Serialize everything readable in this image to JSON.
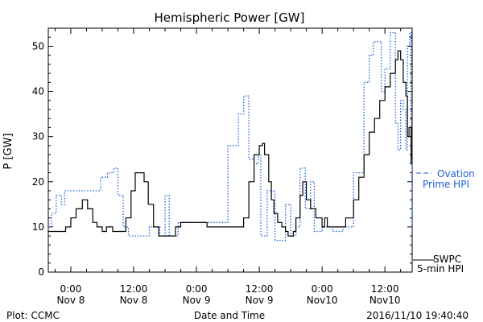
{
  "chart_data": {
    "type": "line",
    "title": "Hemispheric Power [GW]",
    "xlabel": "Date and Time",
    "ylabel": "P [GW]",
    "footer_left": "Plot: CCMC",
    "footer_right": "2016/11/10 19:40:40",
    "x_unit": "hours since 2016-11-08 00:00 UT",
    "xlim": [
      -4.3,
      65.2
    ],
    "ylim": [
      0,
      54
    ],
    "y_ticks": [
      0,
      10,
      20,
      30,
      40,
      50
    ],
    "x_ticks": [
      {
        "x": 0,
        "line1": "0:00",
        "line2": "Nov 8"
      },
      {
        "x": 12,
        "line1": "12:00",
        "line2": "Nov 8"
      },
      {
        "x": 24,
        "line1": "0:00",
        "line2": "Nov 9"
      },
      {
        "x": 36,
        "line1": "12:00",
        "line2": "Nov 9"
      },
      {
        "x": 48,
        "line1": "0:00",
        "line2": "Nov10"
      },
      {
        "x": 60,
        "line1": "12:00",
        "line2": "Nov10"
      }
    ],
    "series": [
      {
        "name": "Ovation Prime HPI",
        "legend_line1": "Ovation",
        "legend_line2": "Prime HPI",
        "color": "#1f5fd6",
        "style": "dotted",
        "points": [
          [
            -4.3,
            10
          ],
          [
            -3.7,
            13
          ],
          [
            -2.8,
            17
          ],
          [
            -1.8,
            15
          ],
          [
            -1.2,
            18
          ],
          [
            4.8,
            18
          ],
          [
            5.7,
            21
          ],
          [
            7.0,
            22
          ],
          [
            8.2,
            23
          ],
          [
            9.0,
            17
          ],
          [
            10.0,
            10
          ],
          [
            11.0,
            8
          ],
          [
            14.0,
            8
          ],
          [
            15.0,
            10
          ],
          [
            17.0,
            8
          ],
          [
            18.0,
            17
          ],
          [
            18.8,
            8
          ],
          [
            19.8,
            8
          ],
          [
            20.5,
            11
          ],
          [
            25.0,
            11
          ],
          [
            30.0,
            28
          ],
          [
            32.0,
            35
          ],
          [
            33.0,
            39
          ],
          [
            34.0,
            25
          ],
          [
            35.0,
            24
          ],
          [
            35.8,
            26
          ],
          [
            36.3,
            8
          ],
          [
            37.0,
            8
          ],
          [
            37.5,
            18
          ],
          [
            38.5,
            18
          ],
          [
            39.0,
            7
          ],
          [
            40.0,
            7
          ],
          [
            41.0,
            15
          ],
          [
            42.0,
            8
          ],
          [
            43.0,
            10
          ],
          [
            43.8,
            23
          ],
          [
            44.8,
            14
          ],
          [
            45.8,
            20
          ],
          [
            46.5,
            9
          ],
          [
            47.5,
            9
          ],
          [
            48.0,
            10
          ],
          [
            50.0,
            9
          ],
          [
            52.0,
            10
          ],
          [
            54.0,
            22
          ],
          [
            56.0,
            42
          ],
          [
            57.0,
            48
          ],
          [
            57.8,
            51
          ],
          [
            58.8,
            51
          ],
          [
            59.3,
            40
          ],
          [
            60.0,
            45
          ],
          [
            61.0,
            53
          ],
          [
            62.0,
            33
          ],
          [
            62.5,
            27
          ],
          [
            63.0,
            38
          ],
          [
            63.5,
            36
          ],
          [
            64.0,
            27
          ],
          [
            64.3,
            50
          ],
          [
            64.7,
            53
          ],
          [
            65.0,
            25
          ],
          [
            65.2,
            9
          ]
        ]
      },
      {
        "name": "SWPC 5-min HPI",
        "legend_line1": "SWPC",
        "legend_line2": "5-min HPI",
        "color": "#000000",
        "style": "solid",
        "points": [
          [
            -4.3,
            9
          ],
          [
            -2.5,
            9
          ],
          [
            -1.0,
            10
          ],
          [
            0.0,
            12
          ],
          [
            1.0,
            14
          ],
          [
            2.2,
            16
          ],
          [
            3.2,
            14
          ],
          [
            4.2,
            11
          ],
          [
            5.0,
            10
          ],
          [
            6.0,
            9
          ],
          [
            6.8,
            10
          ],
          [
            8.0,
            9
          ],
          [
            9.5,
            9
          ],
          [
            10.5,
            12
          ],
          [
            11.5,
            18
          ],
          [
            12.3,
            22
          ],
          [
            13.5,
            22
          ],
          [
            14.0,
            20
          ],
          [
            14.8,
            15
          ],
          [
            15.8,
            10
          ],
          [
            16.8,
            8
          ],
          [
            17.8,
            8
          ],
          [
            19.0,
            8
          ],
          [
            20.0,
            10
          ],
          [
            21.0,
            11
          ],
          [
            26.0,
            10
          ],
          [
            32.0,
            10
          ],
          [
            33.0,
            12
          ],
          [
            34.0,
            20
          ],
          [
            35.0,
            26
          ],
          [
            36.0,
            28
          ],
          [
            36.6,
            28.5
          ],
          [
            37.0,
            26
          ],
          [
            37.8,
            20
          ],
          [
            38.3,
            16
          ],
          [
            38.8,
            13
          ],
          [
            39.5,
            11
          ],
          [
            40.3,
            10
          ],
          [
            41.0,
            9
          ],
          [
            41.5,
            8
          ],
          [
            42.5,
            9
          ],
          [
            43.0,
            12
          ],
          [
            43.8,
            17
          ],
          [
            44.3,
            20
          ],
          [
            45.0,
            16
          ],
          [
            45.8,
            14
          ],
          [
            46.8,
            12
          ],
          [
            48.0,
            10
          ],
          [
            48.5,
            12
          ],
          [
            49.0,
            10
          ],
          [
            51.0,
            10
          ],
          [
            52.5,
            12
          ],
          [
            54.0,
            16
          ],
          [
            55.0,
            21
          ],
          [
            56.0,
            26
          ],
          [
            57.0,
            31
          ],
          [
            58.0,
            34
          ],
          [
            59.0,
            38
          ],
          [
            60.0,
            41
          ],
          [
            61.0,
            44
          ],
          [
            62.0,
            47
          ],
          [
            62.5,
            49
          ],
          [
            63.0,
            47
          ],
          [
            63.5,
            42
          ],
          [
            64.0,
            39
          ],
          [
            64.3,
            30
          ],
          [
            64.6,
            32
          ],
          [
            65.0,
            24
          ]
        ]
      }
    ],
    "legend_placement": "right"
  }
}
